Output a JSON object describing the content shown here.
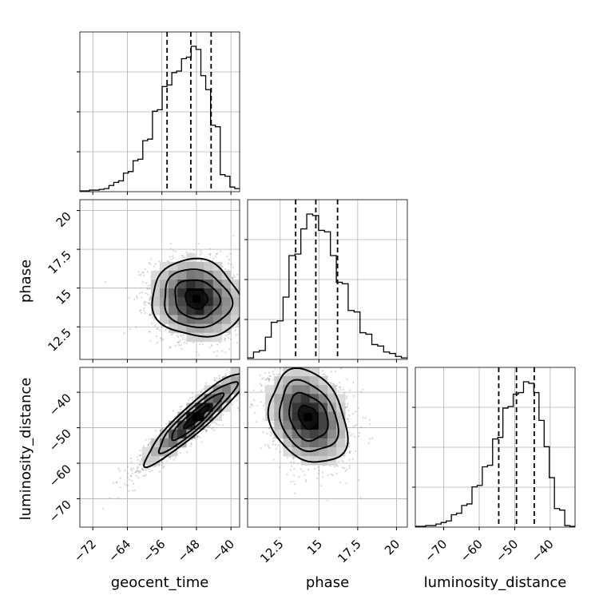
{
  "chart_data": {
    "type": "corner",
    "parameters": [
      {
        "name": "geocent_time",
        "label": "geocent_time",
        "range": [
          -75,
          -38
        ],
        "ticks": [
          -72,
          -64,
          -56,
          -48,
          -40
        ],
        "quantiles": [
          -54.8,
          -49.3,
          -44.6
        ],
        "hist": [
          0.5,
          0.5,
          1,
          1,
          1.5,
          2,
          4,
          6,
          7,
          12,
          13,
          20,
          21,
          33,
          34,
          52,
          53,
          68,
          69,
          77,
          78,
          86,
          87,
          94,
          92,
          75,
          66,
          43,
          42,
          11,
          10,
          3,
          2
        ]
      },
      {
        "name": "phase",
        "label": "phase",
        "range": [
          10.4,
          20.7
        ],
        "ticks": [
          12.5,
          15.0,
          17.5,
          20.0
        ],
        "quantiles": [
          13.5,
          14.8,
          16.2
        ],
        "hist": [
          1,
          5,
          6,
          15,
          25,
          26,
          42,
          70,
          71,
          88,
          98,
          97,
          87,
          86,
          70,
          52,
          51,
          33,
          32,
          18,
          17,
          10,
          9,
          5,
          4,
          2,
          1
        ]
      },
      {
        "name": "luminosity_distance",
        "label": "luminosity_distance",
        "range": [
          -78,
          -33
        ],
        "ticks": [
          -70,
          -60,
          -50,
          -40
        ],
        "quantiles": [
          -54.5,
          -49.5,
          -44.5
        ],
        "hist": [
          0.5,
          0.5,
          1,
          1,
          2,
          3,
          4,
          8,
          9,
          14,
          15,
          26,
          27,
          39,
          40,
          57,
          58,
          77,
          78,
          86,
          87,
          94,
          93,
          87,
          69,
          52,
          32,
          12,
          11,
          1,
          0.5
        ]
      }
    ],
    "pairs": [
      {
        "x": "geocent_time",
        "y": "phase",
        "center": [
          -48,
          14.3
        ],
        "sigma": [
          5.2,
          1.25
        ],
        "rho": -0.1,
        "y_ticks": [
          12.5,
          15.0,
          17.5,
          20.0
        ]
      },
      {
        "x": "geocent_time",
        "y": "luminosity_distance",
        "center": [
          -48,
          -47
        ],
        "sigma": [
          6.0,
          6.6
        ],
        "rho": 0.93,
        "y_ticks": [
          -70,
          -60,
          -50,
          -40
        ]
      },
      {
        "x": "phase",
        "y": "luminosity_distance",
        "center": [
          14.3,
          -47
        ],
        "sigma": [
          1.25,
          6.6
        ],
        "rho": -0.25
      }
    ],
    "diag_tick_fractions": [
      0.25,
      0.5,
      0.75
    ],
    "grid": true
  }
}
